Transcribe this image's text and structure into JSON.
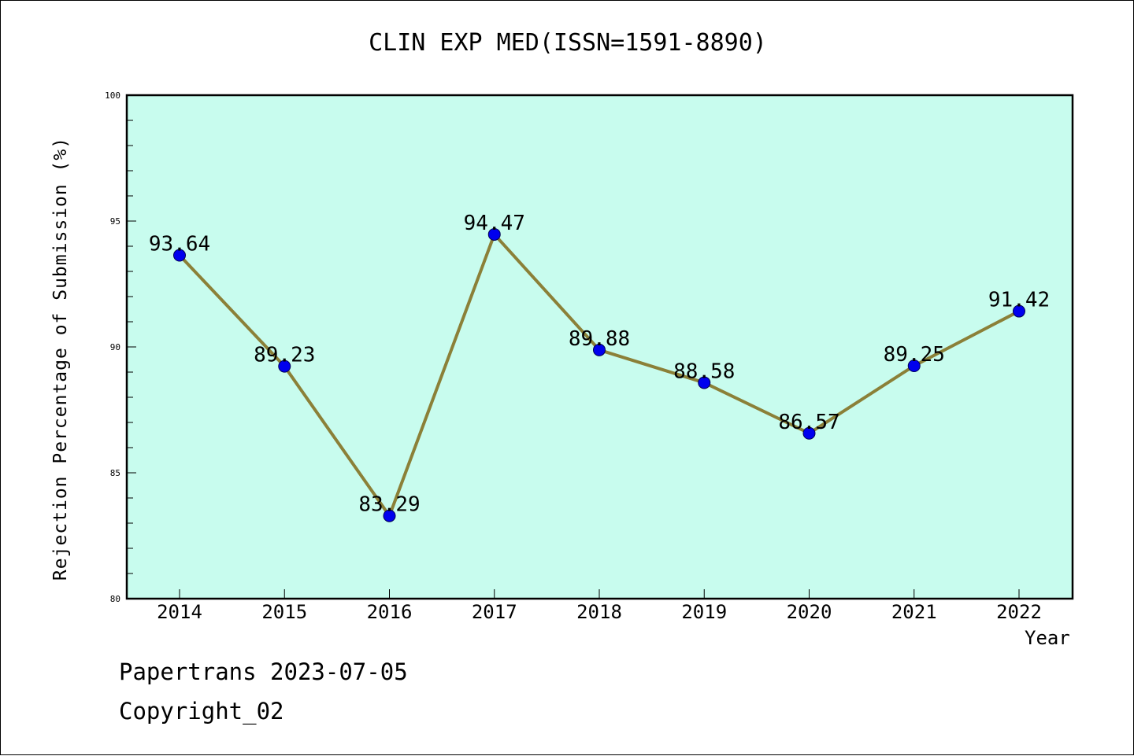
{
  "chart_data": {
    "type": "line",
    "title": "CLIN EXP MED(ISSN=1591-8890)",
    "xlabel": "Year",
    "ylabel": "Rejection Percentage of Submission (%)",
    "categories": [
      "2014",
      "2015",
      "2016",
      "2017",
      "2018",
      "2019",
      "2020",
      "2021",
      "2022"
    ],
    "values": [
      93.64,
      89.23,
      83.29,
      94.47,
      89.88,
      88.58,
      86.57,
      89.25,
      91.42
    ],
    "data_labels": [
      "93.64",
      "89.23",
      "83.29",
      "94.47",
      "89.88",
      "88.58",
      "86.57",
      "89.25",
      "91.42"
    ],
    "ylim": [
      80,
      100
    ],
    "y_ticks": [
      80,
      85,
      90,
      95,
      100
    ],
    "y_tick_labels": [
      "80",
      "85",
      "90",
      "95",
      "100"
    ],
    "grid": false,
    "legend": "none"
  },
  "footer": {
    "line1": "Papertrans 2023-07-05",
    "line2": "Copyright_02"
  },
  "colors": {
    "plot_background": "#c8fcee",
    "line": "#8b8038",
    "marker": "#0000ee",
    "axes": "#000000"
  }
}
